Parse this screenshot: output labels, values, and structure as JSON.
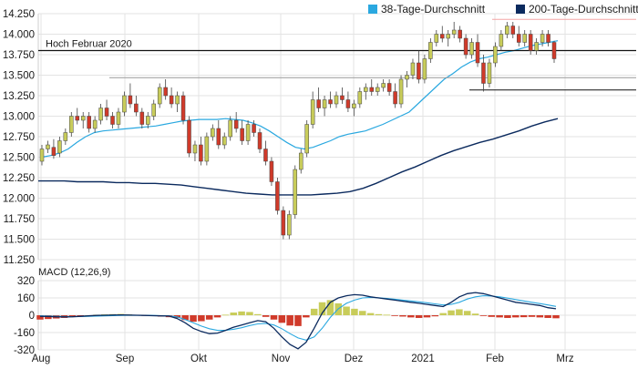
{
  "chart_data": [
    {
      "type": "candlestick",
      "y_ticks": [
        "14.250",
        "14.000",
        "13.750",
        "13.500",
        "13.250",
        "13.000",
        "12.750",
        "12.500",
        "12.250",
        "12.000",
        "11.750",
        "11.500",
        "11.250"
      ],
      "ylim": [
        11.25,
        14.25
      ],
      "x_ticks": [
        "Aug",
        "Sep",
        "Okt",
        "Nov",
        "Dez",
        "2021",
        "Feb",
        "Mrz"
      ],
      "legend": [
        "38-Tage-Durchschnitt",
        "200-Tage-Durchschnitt"
      ],
      "legend_placement": "top-right",
      "colors": {
        "up": "#c8cc5a",
        "down": "#d03a2a",
        "ma38": "#2aa8e0",
        "ma200": "#0b2a5e",
        "line": "#111111",
        "grey": "#9a9a9a",
        "pink": "#f4a6a6"
      },
      "annotations": [
        {
          "text": "Hoch Februar 2020",
          "y": 13.8
        },
        {
          "text": "",
          "y": 13.47
        },
        {
          "text": "",
          "y": 13.32
        },
        {
          "text": "",
          "y": 14.18
        }
      ],
      "candles": [
        [
          12.45,
          12.65,
          12.4,
          12.6
        ],
        [
          12.6,
          12.7,
          12.55,
          12.65
        ],
        [
          12.62,
          12.72,
          12.48,
          12.52
        ],
        [
          12.55,
          12.75,
          12.5,
          12.7
        ],
        [
          12.7,
          12.85,
          12.65,
          12.8
        ],
        [
          12.8,
          13.05,
          12.75,
          13.0
        ],
        [
          13.0,
          13.1,
          12.9,
          12.95
        ],
        [
          12.95,
          13.05,
          12.85,
          13.0
        ],
        [
          13.0,
          13.05,
          12.8,
          12.85
        ],
        [
          12.85,
          13.0,
          12.8,
          12.95
        ],
        [
          12.95,
          13.15,
          12.9,
          13.1
        ],
        [
          13.1,
          13.2,
          12.95,
          13.0
        ],
        [
          13.0,
          13.05,
          12.85,
          12.9
        ],
        [
          12.9,
          13.1,
          12.85,
          13.05
        ],
        [
          13.05,
          13.3,
          13.0,
          13.25
        ],
        [
          13.25,
          13.4,
          13.1,
          13.15
        ],
        [
          13.15,
          13.25,
          13.0,
          13.05
        ],
        [
          13.05,
          13.1,
          12.85,
          12.9
        ],
        [
          12.9,
          13.05,
          12.85,
          13.0
        ],
        [
          13.0,
          13.2,
          12.95,
          13.15
        ],
        [
          13.15,
          13.4,
          13.1,
          13.35
        ],
        [
          13.35,
          13.45,
          13.2,
          13.25
        ],
        [
          13.25,
          13.35,
          13.1,
          13.15
        ],
        [
          13.15,
          13.3,
          13.05,
          13.25
        ],
        [
          13.25,
          13.3,
          12.9,
          12.95
        ],
        [
          12.95,
          13.0,
          12.5,
          12.55
        ],
        [
          12.55,
          12.7,
          12.45,
          12.65
        ],
        [
          12.65,
          12.75,
          12.4,
          12.45
        ],
        [
          12.45,
          12.8,
          12.4,
          12.75
        ],
        [
          12.75,
          12.9,
          12.7,
          12.85
        ],
        [
          12.85,
          12.95,
          12.6,
          12.65
        ],
        [
          12.65,
          12.8,
          12.6,
          12.75
        ],
        [
          12.75,
          13.0,
          12.7,
          12.95
        ],
        [
          12.95,
          13.05,
          12.8,
          12.85
        ],
        [
          12.85,
          12.95,
          12.65,
          12.7
        ],
        [
          12.7,
          12.95,
          12.65,
          12.9
        ],
        [
          12.9,
          12.95,
          12.75,
          12.8
        ],
        [
          12.8,
          12.85,
          12.55,
          12.6
        ],
        [
          12.6,
          12.7,
          12.4,
          12.45
        ],
        [
          12.45,
          12.5,
          12.15,
          12.2
        ],
        [
          12.2,
          12.25,
          11.8,
          11.85
        ],
        [
          11.85,
          11.9,
          11.5,
          11.55
        ],
        [
          11.55,
          11.85,
          11.5,
          11.8
        ],
        [
          11.8,
          12.4,
          11.75,
          12.35
        ],
        [
          12.35,
          12.6,
          12.3,
          12.55
        ],
        [
          12.55,
          12.95,
          12.5,
          12.9
        ],
        [
          12.9,
          13.3,
          12.85,
          13.2
        ],
        [
          13.2,
          13.35,
          13.05,
          13.1
        ],
        [
          13.1,
          13.25,
          13.0,
          13.2
        ],
        [
          13.2,
          13.3,
          13.1,
          13.15
        ],
        [
          13.15,
          13.3,
          13.1,
          13.25
        ],
        [
          13.25,
          13.35,
          13.15,
          13.2
        ],
        [
          13.2,
          13.3,
          13.05,
          13.1
        ],
        [
          13.1,
          13.2,
          13.0,
          13.15
        ],
        [
          13.15,
          13.35,
          13.1,
          13.3
        ],
        [
          13.3,
          13.4,
          13.2,
          13.35
        ],
        [
          13.35,
          13.45,
          13.25,
          13.3
        ],
        [
          13.3,
          13.4,
          13.25,
          13.35
        ],
        [
          13.35,
          13.45,
          13.3,
          13.4
        ],
        [
          13.4,
          13.45,
          13.25,
          13.3
        ],
        [
          13.3,
          13.4,
          13.1,
          13.15
        ],
        [
          13.15,
          13.5,
          13.1,
          13.45
        ],
        [
          13.45,
          13.55,
          13.35,
          13.5
        ],
        [
          13.5,
          13.7,
          13.45,
          13.65
        ],
        [
          13.65,
          13.8,
          13.4,
          13.45
        ],
        [
          13.45,
          13.75,
          13.4,
          13.7
        ],
        [
          13.7,
          13.95,
          13.65,
          13.9
        ],
        [
          13.9,
          14.05,
          13.85,
          14.0
        ],
        [
          14.0,
          14.1,
          13.9,
          13.95
        ],
        [
          13.95,
          14.05,
          13.85,
          14.0
        ],
        [
          14.0,
          14.15,
          13.95,
          14.05
        ],
        [
          14.05,
          14.1,
          13.9,
          13.95
        ],
        [
          13.95,
          14.0,
          13.7,
          13.75
        ],
        [
          13.75,
          13.95,
          13.7,
          13.9
        ],
        [
          13.9,
          14.0,
          13.6,
          13.65
        ],
        [
          13.65,
          13.75,
          13.3,
          13.4
        ],
        [
          13.4,
          13.7,
          13.35,
          13.65
        ],
        [
          13.65,
          13.9,
          13.6,
          13.85
        ],
        [
          13.85,
          14.05,
          13.8,
          14.0
        ],
        [
          14.0,
          14.15,
          13.95,
          14.1
        ],
        [
          14.1,
          14.15,
          13.95,
          14.0
        ],
        [
          14.0,
          14.1,
          13.85,
          13.9
        ],
        [
          13.9,
          14.05,
          13.85,
          14.0
        ],
        [
          14.0,
          14.05,
          13.75,
          13.8
        ],
        [
          13.8,
          13.95,
          13.75,
          13.9
        ],
        [
          13.9,
          14.05,
          13.85,
          14.0
        ],
        [
          14.0,
          14.05,
          13.85,
          13.9
        ],
        [
          13.9,
          13.92,
          13.65,
          13.7
        ]
      ],
      "ma38": [
        12.5,
        12.52,
        12.55,
        12.6,
        12.68,
        12.75,
        12.8,
        12.82,
        12.83,
        12.84,
        12.85,
        12.86,
        12.87,
        12.88,
        12.9,
        12.92,
        12.94,
        12.95,
        12.96,
        12.96,
        12.96,
        12.97,
        12.96,
        12.95,
        12.92,
        12.88,
        12.82,
        12.75,
        12.68,
        12.62,
        12.6,
        12.62,
        12.66,
        12.7,
        12.75,
        12.78,
        12.8,
        12.82,
        12.86,
        12.9,
        12.95,
        13.0,
        13.05,
        13.15,
        13.25,
        13.35,
        13.45,
        13.52,
        13.6,
        13.66,
        13.7,
        13.72,
        13.75,
        13.78,
        13.8,
        13.83,
        13.86,
        13.88,
        13.9,
        13.92
      ],
      "ma200": [
        12.21,
        12.21,
        12.21,
        12.2,
        12.2,
        12.2,
        12.19,
        12.19,
        12.18,
        12.18,
        12.17,
        12.16,
        12.14,
        12.12,
        12.1,
        12.08,
        12.06,
        12.05,
        12.04,
        12.04,
        12.04,
        12.04,
        12.05,
        12.06,
        12.08,
        12.12,
        12.18,
        12.25,
        12.32,
        12.38,
        12.45,
        12.52,
        12.58,
        12.63,
        12.68,
        12.72,
        12.77,
        12.82,
        12.88,
        12.93,
        12.97
      ]
    },
    {
      "type": "macd",
      "title": "MACD (12,26,9)",
      "y_ticks": [
        "320",
        "160",
        "0",
        "-160",
        "-320"
      ],
      "ylim": [
        -320,
        320
      ],
      "macd": [
        -10,
        -12,
        -14,
        -15,
        -14,
        -10,
        -6,
        -2,
        0,
        2,
        3,
        2,
        0,
        -2,
        -4,
        -6,
        -8,
        -30,
        -70,
        -120,
        -150,
        -170,
        -165,
        -140,
        -110,
        -90,
        -70,
        -50,
        -60,
        -120,
        -200,
        -270,
        -310,
        -250,
        -120,
        20,
        120,
        160,
        180,
        190,
        185,
        170,
        160,
        150,
        140,
        130,
        120,
        110,
        100,
        90,
        80,
        120,
        170,
        200,
        210,
        200,
        180,
        160,
        140,
        120,
        110,
        100,
        90,
        70,
        60
      ],
      "signal": [
        -5,
        -8,
        -10,
        -12,
        -13,
        -12,
        -10,
        -8,
        -6,
        -4,
        -2,
        -1,
        0,
        -1,
        -2,
        -4,
        -6,
        -15,
        -40,
        -70,
        -100,
        -125,
        -140,
        -140,
        -130,
        -115,
        -95,
        -80,
        -75,
        -90,
        -125,
        -170,
        -210,
        -230,
        -200,
        -120,
        -20,
        60,
        110,
        140,
        160,
        165,
        162,
        156,
        148,
        140,
        132,
        124,
        115,
        105,
        95,
        100,
        120,
        150,
        170,
        180,
        178,
        170,
        158,
        145,
        132,
        120,
        108,
        95,
        82
      ],
      "histogram": [
        -40,
        -35,
        -30,
        -25,
        -15,
        -8,
        0,
        5,
        8,
        10,
        12,
        8,
        3,
        -2,
        -8,
        -12,
        -18,
        -25,
        -45,
        -60,
        -55,
        -40,
        -20,
        5,
        25,
        35,
        30,
        10,
        -15,
        -40,
        -70,
        -95,
        -100,
        -20,
        60,
        120,
        140,
        110,
        80,
        60,
        40,
        20,
        10,
        5,
        -5,
        -12,
        -20,
        -25,
        -20,
        -10,
        20,
        45,
        55,
        40,
        15,
        -5,
        -15,
        -20,
        -25,
        -20,
        -18,
        -15,
        -20,
        -25,
        -28
      ]
    }
  ]
}
